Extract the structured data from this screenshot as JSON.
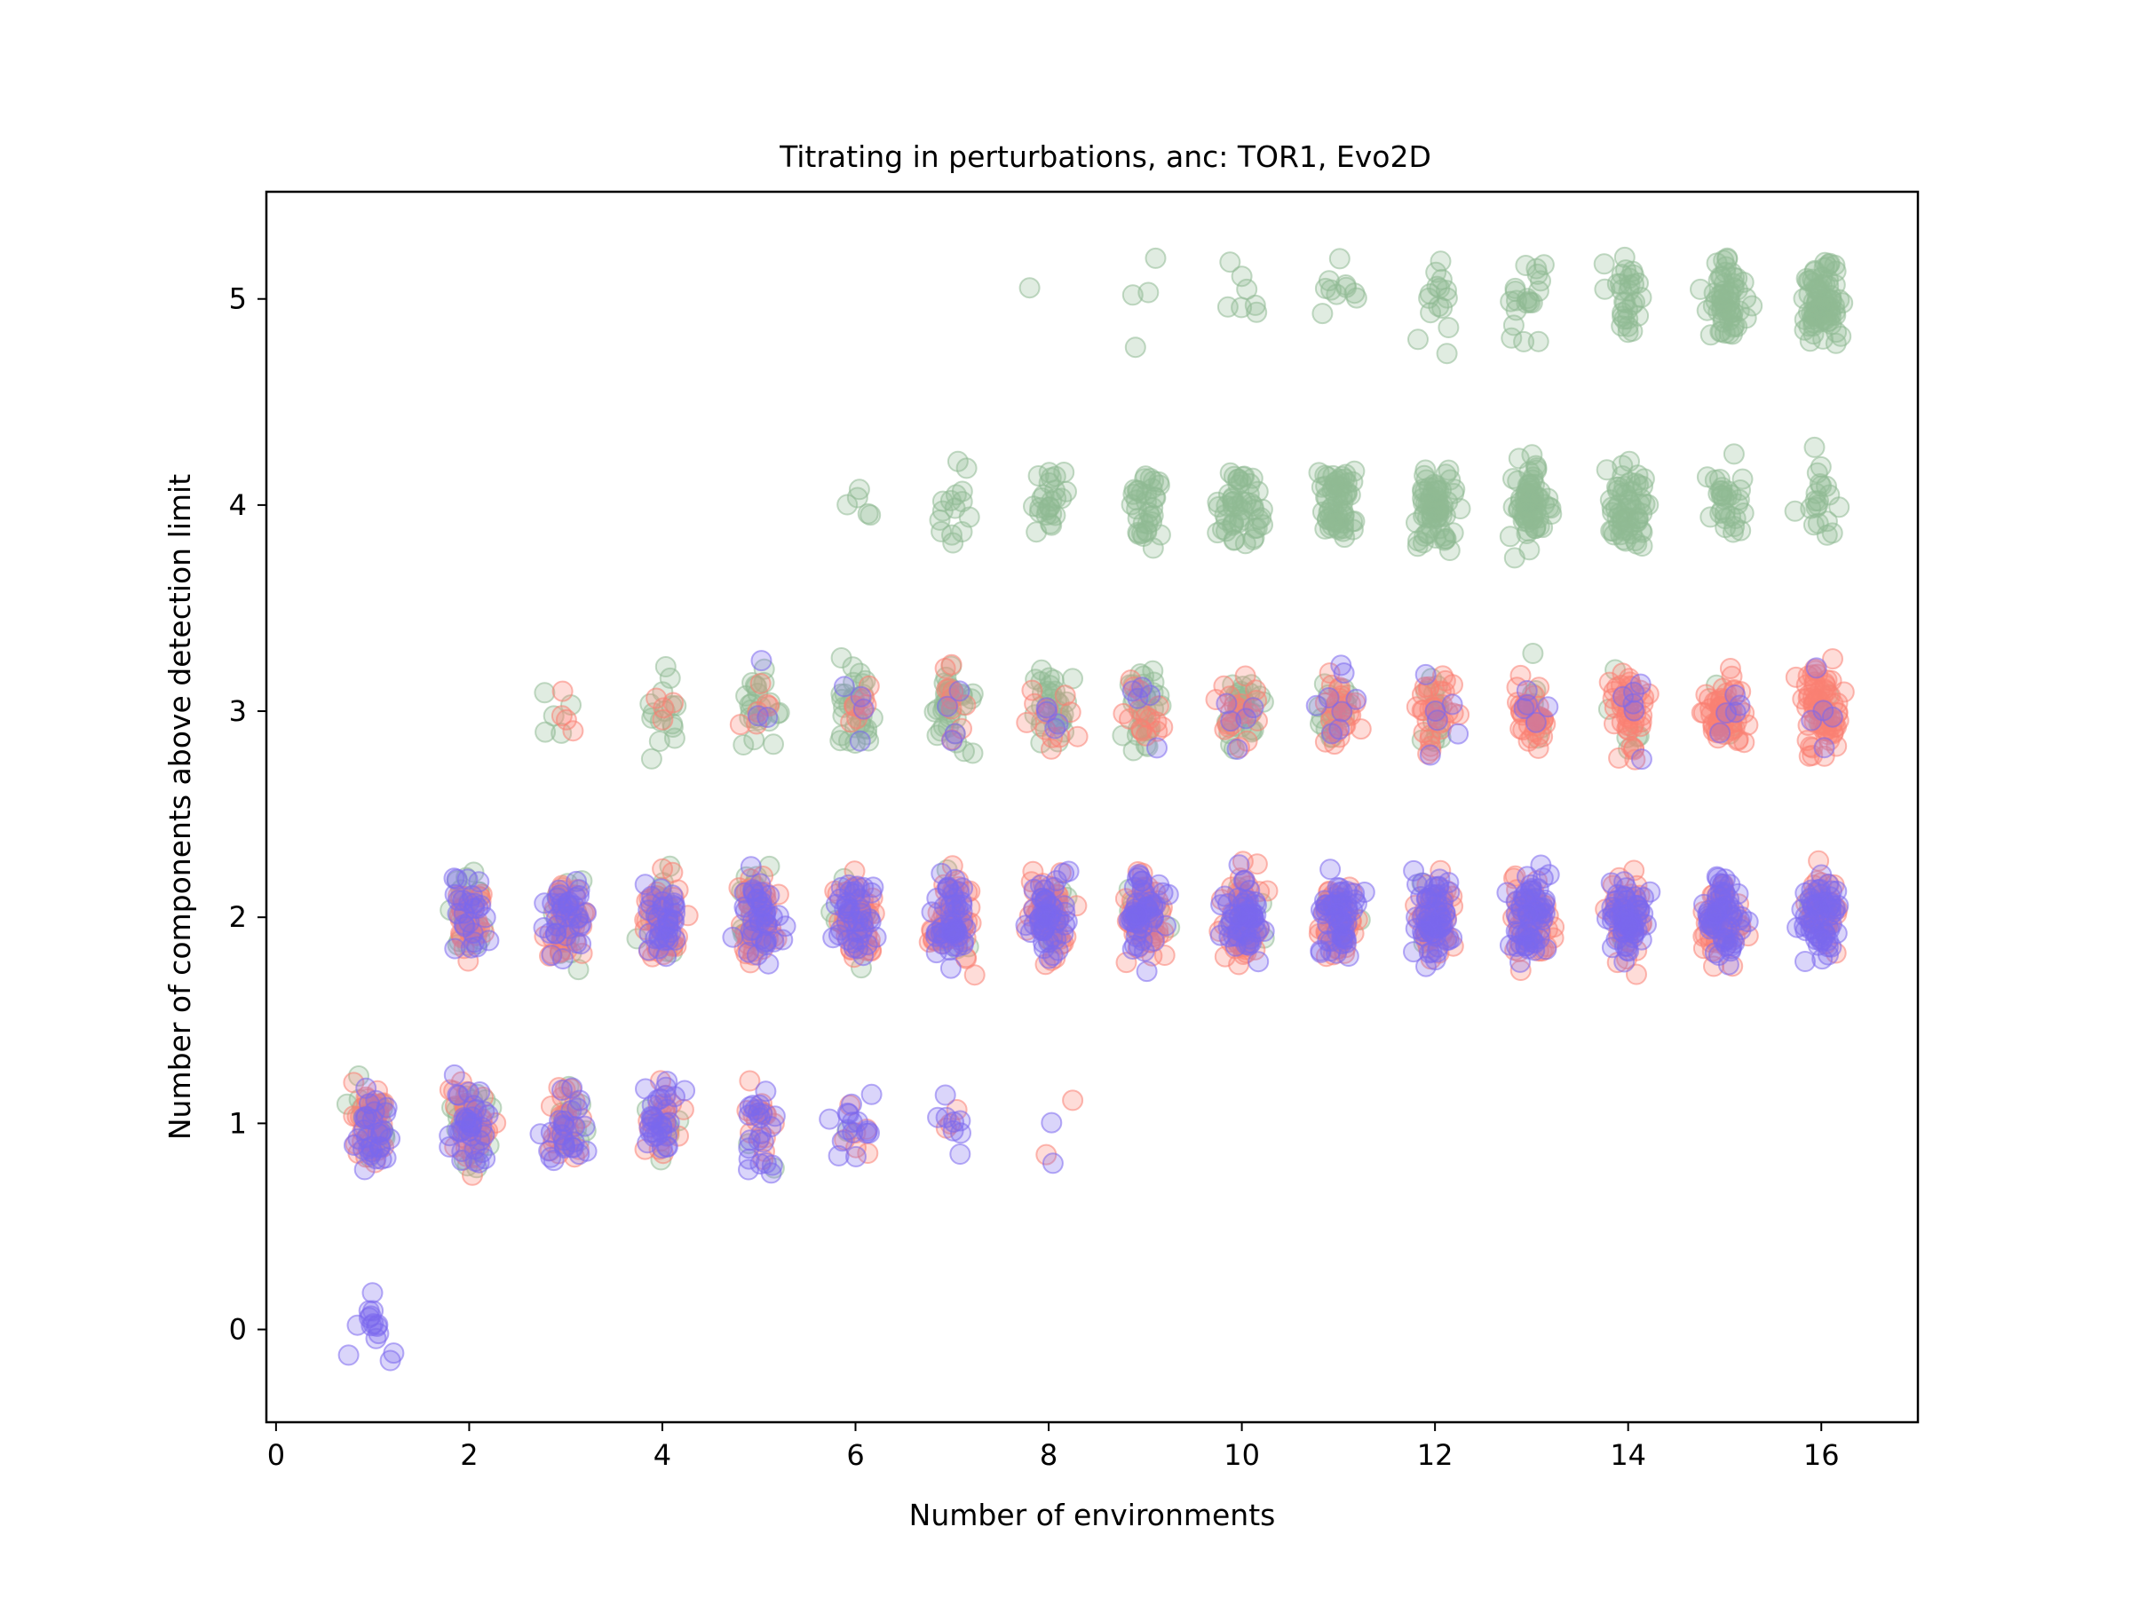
{
  "chart_data": {
    "type": "scatter",
    "title": "Titrating in perturbations, anc: TOR1, Evo2D",
    "xlabel": "Number of environments",
    "ylabel": "Number of components above detection limit",
    "xlim": [
      -0.1,
      17
    ],
    "ylim": [
      -0.45,
      5.52
    ],
    "xticks": [
      "0",
      "2",
      "4",
      "6",
      "8",
      "10",
      "12",
      "14",
      "16"
    ],
    "yticks": [
      "0",
      "1",
      "2",
      "3",
      "4",
      "5"
    ],
    "grid": false,
    "legend": "none",
    "note": "Points are jittered around integer (x, y) positions; each group lists its integer x, integer y and the approximate number of points at that position.",
    "series": [
      {
        "color": "#8fba94",
        "points": [
          {
            "x": 1,
            "y": 1,
            "n": 25
          },
          {
            "x": 2,
            "y": 1,
            "n": 25
          },
          {
            "x": 2,
            "y": 2,
            "n": 20
          },
          {
            "x": 3,
            "y": 1,
            "n": 12
          },
          {
            "x": 3,
            "y": 2,
            "n": 15
          },
          {
            "x": 3,
            "y": 3,
            "n": 5
          },
          {
            "x": 4,
            "y": 1,
            "n": 6
          },
          {
            "x": 4,
            "y": 2,
            "n": 20
          },
          {
            "x": 4,
            "y": 3,
            "n": 15
          },
          {
            "x": 5,
            "y": 1,
            "n": 2
          },
          {
            "x": 5,
            "y": 2,
            "n": 20
          },
          {
            "x": 5,
            "y": 3,
            "n": 22
          },
          {
            "x": 6,
            "y": 1,
            "n": 1
          },
          {
            "x": 6,
            "y": 2,
            "n": 10
          },
          {
            "x": 6,
            "y": 3,
            "n": 30
          },
          {
            "x": 6,
            "y": 4,
            "n": 5
          },
          {
            "x": 7,
            "y": 2,
            "n": 10
          },
          {
            "x": 7,
            "y": 3,
            "n": 35
          },
          {
            "x": 7,
            "y": 4,
            "n": 15
          },
          {
            "x": 8,
            "y": 2,
            "n": 8
          },
          {
            "x": 8,
            "y": 3,
            "n": 30
          },
          {
            "x": 8,
            "y": 4,
            "n": 25
          },
          {
            "x": 8,
            "y": 5,
            "n": 1
          },
          {
            "x": 9,
            "y": 2,
            "n": 6
          },
          {
            "x": 9,
            "y": 3,
            "n": 30
          },
          {
            "x": 9,
            "y": 4,
            "n": 35
          },
          {
            "x": 9,
            "y": 5,
            "n": 4
          },
          {
            "x": 10,
            "y": 2,
            "n": 5
          },
          {
            "x": 10,
            "y": 3,
            "n": 30
          },
          {
            "x": 10,
            "y": 4,
            "n": 50
          },
          {
            "x": 10,
            "y": 5,
            "n": 7
          },
          {
            "x": 11,
            "y": 2,
            "n": 4
          },
          {
            "x": 11,
            "y": 3,
            "n": 20
          },
          {
            "x": 11,
            "y": 4,
            "n": 60
          },
          {
            "x": 11,
            "y": 5,
            "n": 10
          },
          {
            "x": 12,
            "y": 2,
            "n": 3
          },
          {
            "x": 12,
            "y": 3,
            "n": 15
          },
          {
            "x": 12,
            "y": 4,
            "n": 70
          },
          {
            "x": 12,
            "y": 5,
            "n": 15
          },
          {
            "x": 13,
            "y": 2,
            "n": 2
          },
          {
            "x": 13,
            "y": 3,
            "n": 8
          },
          {
            "x": 13,
            "y": 4,
            "n": 70
          },
          {
            "x": 13,
            "y": 5,
            "n": 20
          },
          {
            "x": 14,
            "y": 2,
            "n": 2
          },
          {
            "x": 14,
            "y": 3,
            "n": 6
          },
          {
            "x": 14,
            "y": 4,
            "n": 60
          },
          {
            "x": 14,
            "y": 5,
            "n": 30
          },
          {
            "x": 15,
            "y": 2,
            "n": 2
          },
          {
            "x": 15,
            "y": 3,
            "n": 4
          },
          {
            "x": 15,
            "y": 4,
            "n": 30
          },
          {
            "x": 15,
            "y": 5,
            "n": 60
          },
          {
            "x": 16,
            "y": 2,
            "n": 2
          },
          {
            "x": 16,
            "y": 3,
            "n": 3
          },
          {
            "x": 16,
            "y": 4,
            "n": 20
          },
          {
            "x": 16,
            "y": 5,
            "n": 80
          }
        ]
      },
      {
        "color": "#fa8072",
        "points": [
          {
            "x": 1,
            "y": 1,
            "n": 40
          },
          {
            "x": 2,
            "y": 1,
            "n": 35
          },
          {
            "x": 2,
            "y": 2,
            "n": 30
          },
          {
            "x": 3,
            "y": 1,
            "n": 25
          },
          {
            "x": 3,
            "y": 2,
            "n": 40
          },
          {
            "x": 3,
            "y": 3,
            "n": 4
          },
          {
            "x": 4,
            "y": 1,
            "n": 20
          },
          {
            "x": 4,
            "y": 2,
            "n": 45
          },
          {
            "x": 4,
            "y": 3,
            "n": 4
          },
          {
            "x": 5,
            "y": 1,
            "n": 15
          },
          {
            "x": 5,
            "y": 2,
            "n": 50
          },
          {
            "x": 5,
            "y": 3,
            "n": 6
          },
          {
            "x": 6,
            "y": 1,
            "n": 6
          },
          {
            "x": 6,
            "y": 2,
            "n": 55
          },
          {
            "x": 6,
            "y": 3,
            "n": 8
          },
          {
            "x": 7,
            "y": 1,
            "n": 3
          },
          {
            "x": 7,
            "y": 2,
            "n": 55
          },
          {
            "x": 7,
            "y": 3,
            "n": 10
          },
          {
            "x": 8,
            "y": 1,
            "n": 2
          },
          {
            "x": 8,
            "y": 2,
            "n": 55
          },
          {
            "x": 8,
            "y": 3,
            "n": 12
          },
          {
            "x": 9,
            "y": 2,
            "n": 55
          },
          {
            "x": 9,
            "y": 3,
            "n": 15
          },
          {
            "x": 10,
            "y": 2,
            "n": 55
          },
          {
            "x": 10,
            "y": 3,
            "n": 20
          },
          {
            "x": 11,
            "y": 2,
            "n": 55
          },
          {
            "x": 11,
            "y": 3,
            "n": 25
          },
          {
            "x": 12,
            "y": 2,
            "n": 50
          },
          {
            "x": 12,
            "y": 3,
            "n": 30
          },
          {
            "x": 13,
            "y": 2,
            "n": 50
          },
          {
            "x": 13,
            "y": 3,
            "n": 35
          },
          {
            "x": 14,
            "y": 2,
            "n": 45
          },
          {
            "x": 14,
            "y": 3,
            "n": 45
          },
          {
            "x": 15,
            "y": 2,
            "n": 45
          },
          {
            "x": 15,
            "y": 3,
            "n": 55
          },
          {
            "x": 16,
            "y": 2,
            "n": 40
          },
          {
            "x": 16,
            "y": 3,
            "n": 70
          }
        ]
      },
      {
        "color": "#7b68ee",
        "points": [
          {
            "x": 1,
            "y": 0,
            "n": 15
          },
          {
            "x": 1,
            "y": 1,
            "n": 30
          },
          {
            "x": 2,
            "y": 1,
            "n": 35
          },
          {
            "x": 2,
            "y": 2,
            "n": 25
          },
          {
            "x": 3,
            "y": 1,
            "n": 25
          },
          {
            "x": 3,
            "y": 2,
            "n": 35
          },
          {
            "x": 4,
            "y": 1,
            "n": 30
          },
          {
            "x": 4,
            "y": 2,
            "n": 35
          },
          {
            "x": 5,
            "y": 1,
            "n": 22
          },
          {
            "x": 5,
            "y": 2,
            "n": 40
          },
          {
            "x": 5,
            "y": 3,
            "n": 3
          },
          {
            "x": 6,
            "y": 1,
            "n": 15
          },
          {
            "x": 6,
            "y": 2,
            "n": 40
          },
          {
            "x": 6,
            "y": 3,
            "n": 4
          },
          {
            "x": 7,
            "y": 1,
            "n": 8
          },
          {
            "x": 7,
            "y": 2,
            "n": 50
          },
          {
            "x": 7,
            "y": 3,
            "n": 4
          },
          {
            "x": 8,
            "y": 1,
            "n": 2
          },
          {
            "x": 8,
            "y": 2,
            "n": 50
          },
          {
            "x": 8,
            "y": 3,
            "n": 4
          },
          {
            "x": 9,
            "y": 2,
            "n": 50
          },
          {
            "x": 9,
            "y": 3,
            "n": 5
          },
          {
            "x": 10,
            "y": 2,
            "n": 55
          },
          {
            "x": 10,
            "y": 3,
            "n": 5
          },
          {
            "x": 11,
            "y": 2,
            "n": 55
          },
          {
            "x": 11,
            "y": 3,
            "n": 8
          },
          {
            "x": 12,
            "y": 2,
            "n": 60
          },
          {
            "x": 12,
            "y": 3,
            "n": 6
          },
          {
            "x": 13,
            "y": 2,
            "n": 60
          },
          {
            "x": 13,
            "y": 3,
            "n": 5
          },
          {
            "x": 14,
            "y": 2,
            "n": 60
          },
          {
            "x": 14,
            "y": 3,
            "n": 6
          },
          {
            "x": 15,
            "y": 2,
            "n": 60
          },
          {
            "x": 15,
            "y": 3,
            "n": 5
          },
          {
            "x": 16,
            "y": 2,
            "n": 60
          },
          {
            "x": 16,
            "y": 3,
            "n": 5
          }
        ]
      }
    ]
  }
}
